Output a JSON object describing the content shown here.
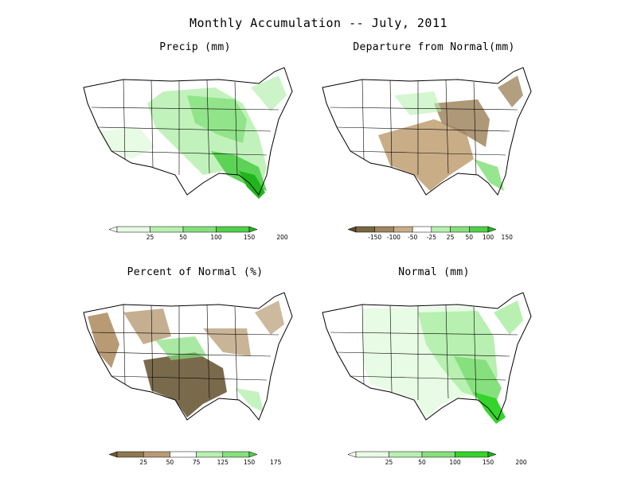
{
  "title": "Monthly Accumulation -- July, 2011",
  "colors": {
    "map_outline": "#000000",
    "no_data": "#ffffff"
  },
  "panels": [
    {
      "id": "precip",
      "title": "Precip (mm)",
      "colorbar": {
        "labels": [
          "25",
          "50",
          "100",
          "150",
          "200"
        ],
        "colors": [
          "#ffffff",
          "#e8fbe4",
          "#b7f0b0",
          "#86e07d",
          "#52cf4a",
          "#21b51c"
        ]
      }
    },
    {
      "id": "departure",
      "title": "Departure from Normal(mm)",
      "colorbar": {
        "labels": [
          "-150",
          "-100",
          "-50",
          "-25",
          "25",
          "50",
          "100",
          "150"
        ],
        "colors": [
          "#5a4a2a",
          "#7a6640",
          "#a08660",
          "#c9ad87",
          "#ffffff",
          "#b7f0b0",
          "#86e07d",
          "#52cf4a",
          "#21b51c"
        ]
      }
    },
    {
      "id": "percent",
      "title": "Percent of Normal (%)",
      "colorbar": {
        "labels": [
          "25",
          "50",
          "75",
          "125",
          "150",
          "175"
        ],
        "colors": [
          "#6b5a38",
          "#8f774f",
          "#b89b74",
          "#ffffff",
          "#b7f0b0",
          "#86e07d",
          "#52cf4a"
        ]
      }
    },
    {
      "id": "normal",
      "title": "Normal (mm)",
      "colorbar": {
        "labels": [
          "25",
          "50",
          "100",
          "150",
          "200"
        ],
        "colors": [
          "#ffffff",
          "#e8fbe4",
          "#b7f0b0",
          "#86e07d",
          "#35d42a",
          "#1fae17"
        ]
      }
    }
  ]
}
